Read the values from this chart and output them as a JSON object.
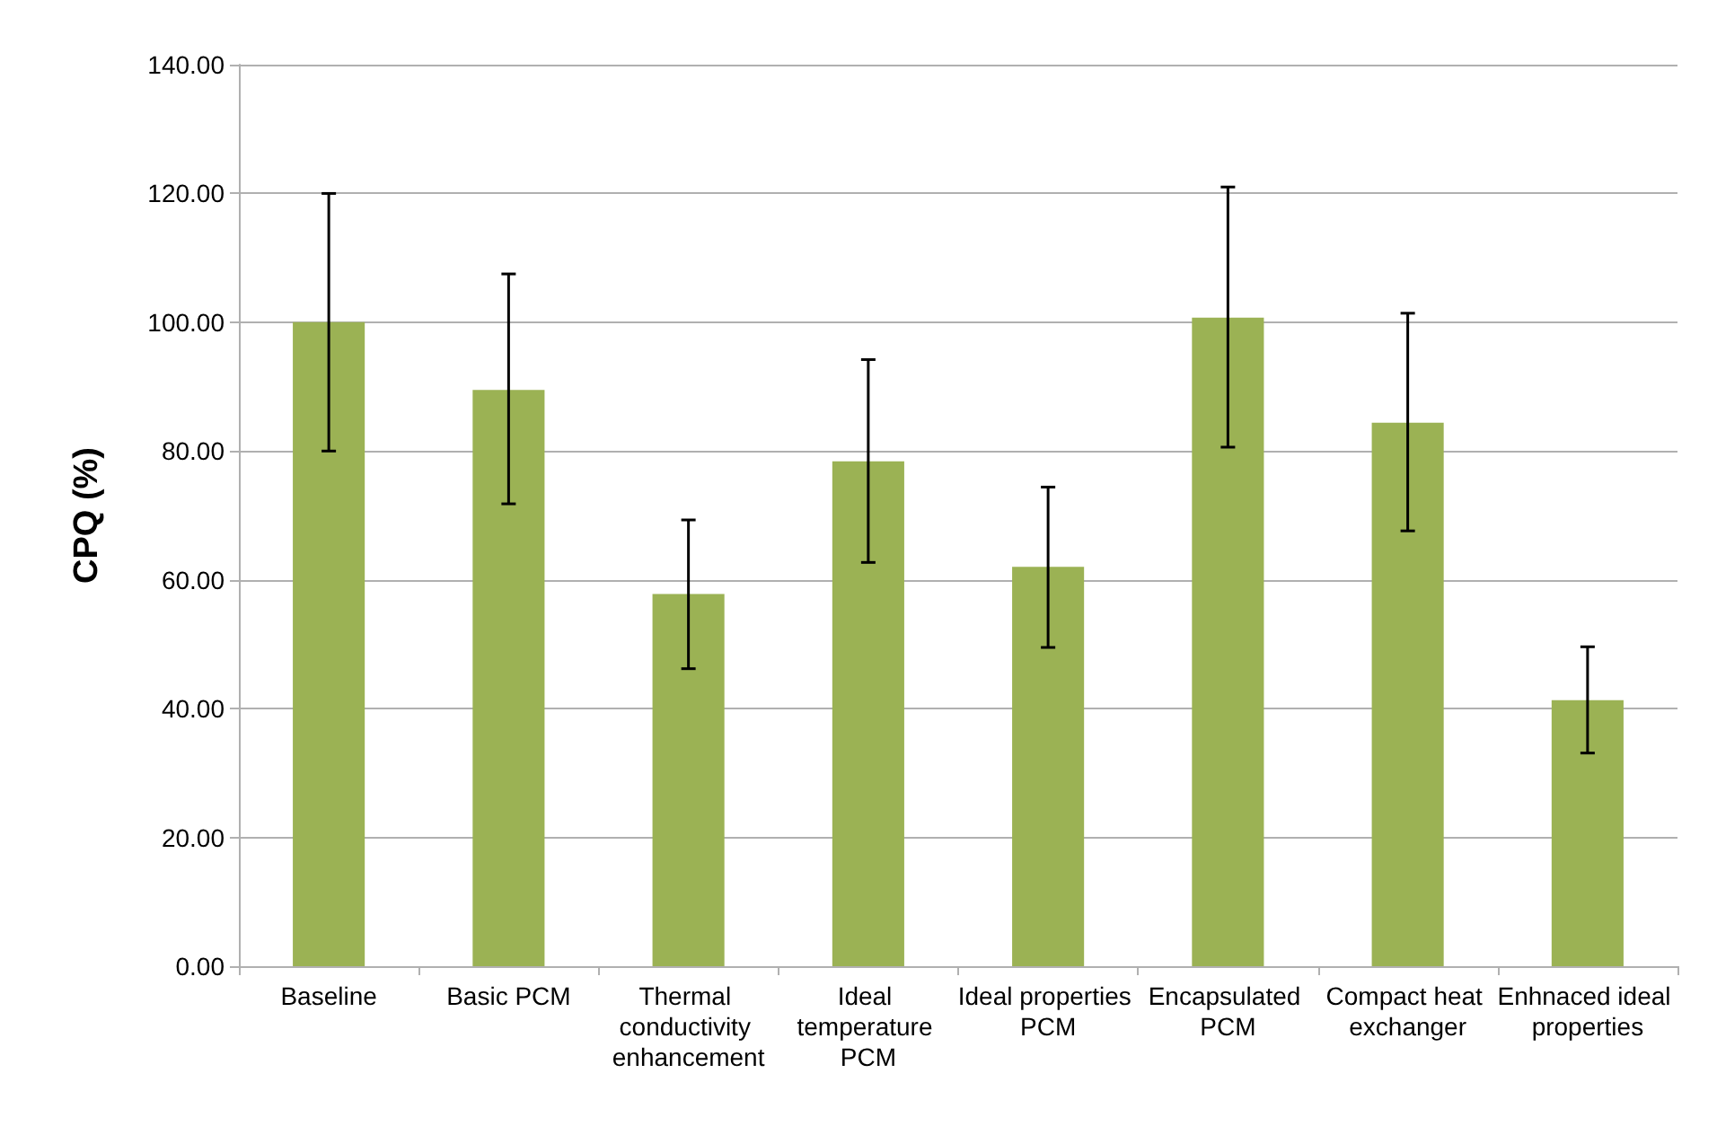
{
  "chart_data": {
    "type": "bar",
    "ylabel": "CPQ (%)",
    "categories": [
      "Baseline",
      "Basic PCM",
      "Thermal conductivity enhancement",
      "Ideal temperature PCM",
      "Ideal properties PCM",
      "Encapsulated PCM",
      "Compact heat exchanger",
      "Enhnaced ideal properties"
    ],
    "values": [
      100,
      89.5,
      57.8,
      78.4,
      62,
      100.7,
      84.4,
      41.3
    ],
    "errors": [
      [
        80,
        120
      ],
      [
        71.8,
        107.5
      ],
      [
        46.2,
        69.3
      ],
      [
        62.7,
        94.2
      ],
      [
        49.5,
        74.4
      ],
      [
        80.6,
        121
      ],
      [
        67.6,
        101.4
      ],
      [
        33.1,
        49.6
      ]
    ],
    "color": "#9bb254",
    "ylim": [
      0,
      140
    ],
    "yticks": [
      {
        "value": 0,
        "label": "0.00"
      },
      {
        "value": 20,
        "label": "20.00"
      },
      {
        "value": 40,
        "label": "40.00"
      },
      {
        "value": 60,
        "label": "60.00"
      },
      {
        "value": 80,
        "label": "80.00"
      },
      {
        "value": 100,
        "label": "100.00"
      },
      {
        "value": 120,
        "label": "120.00"
      },
      {
        "value": 140,
        "label": "140.00"
      }
    ],
    "grid": "y"
  }
}
